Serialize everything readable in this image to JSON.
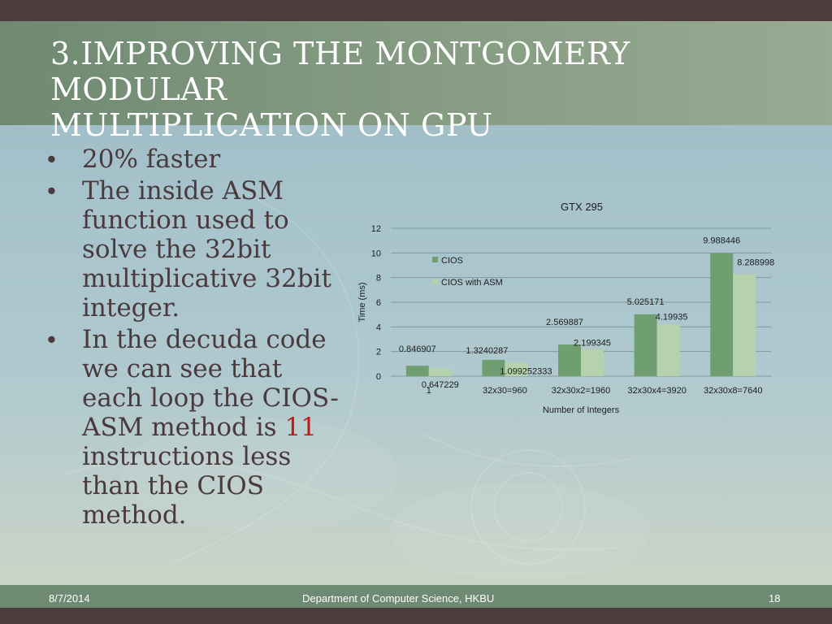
{
  "slide": {
    "title_line1": "3.Improving the Montgomery Modular",
    "title_line2": "Multiplication on GPU",
    "bullet_1": "20% faster",
    "bullet_2": "The inside ASM function used to solve the 32bit multiplicative 32bit integer.",
    "bullet_3_prefix": "In the decuda code we can see that each loop the CIOS-ASM method is ",
    "bullet_3_highlight": "11",
    "bullet_3_suffix": " instructions less than the CIOS method.",
    "bullet_symbol": "•"
  },
  "colors": {
    "title_band": "#6f8a72",
    "dark_bar": "#4d3b3e",
    "body_text": "#4a3a3d",
    "highlight": "#b81c1c",
    "cios": "#6f9f71",
    "cios_asm": "#b5d2ad"
  },
  "chart_data": {
    "type": "bar",
    "title": "GTX 295",
    "xlabel": "Number of Integers",
    "ylabel": "Time (ms)",
    "ylim": [
      0,
      12
    ],
    "yticks": [
      0,
      2,
      4,
      6,
      8,
      10,
      12
    ],
    "grid": true,
    "legend_position": "inside top-left",
    "categories": [
      "1",
      "32x30=960",
      "32x30x2=1960",
      "32x30x4=3920",
      "32x30x8=7640"
    ],
    "series": [
      {
        "name": "CIOS",
        "color": "#6f9f71",
        "values": [
          0.846907,
          1.3240287,
          2.569887,
          5.025171,
          9.988446
        ],
        "labels": [
          "0.846907",
          "1.3240287",
          "2.569887",
          "5.025171",
          "9.988446"
        ]
      },
      {
        "name": "CIOS with ASM",
        "color": "#b5d2ad",
        "values": [
          0.647229,
          1.099252333,
          2.199345,
          4.19935,
          8.288998
        ],
        "labels": [
          "0.647229",
          "1.099252333",
          "2.199345",
          "4.19935",
          "8.288998"
        ]
      }
    ]
  },
  "footer": {
    "date": "8/7/2014",
    "department": "Department of Computer Science, HKBU",
    "page": "18"
  }
}
